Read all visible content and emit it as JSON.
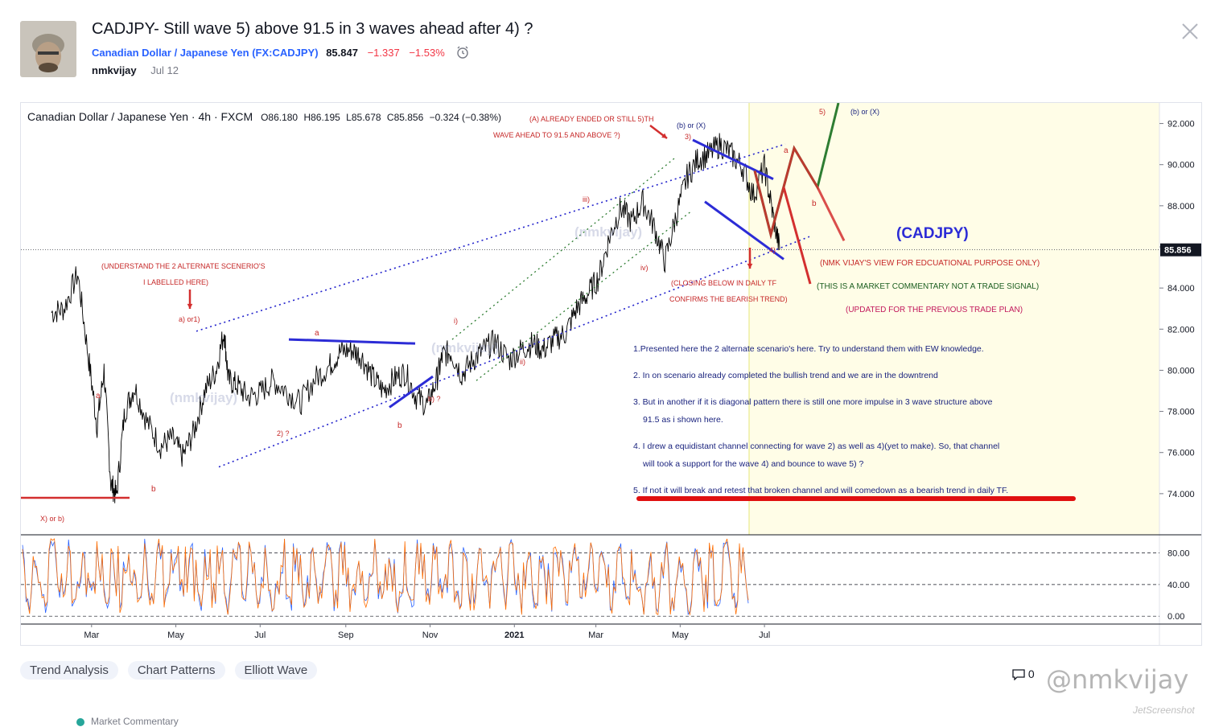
{
  "idea": {
    "title": "CADJPY- Still wave 5) above 91.5 in 3 waves ahead after 4) ?",
    "symbol_name": "Canadian Dollar / Japanese Yen",
    "symbol_ticker": "FX:CADJPY",
    "price": "85.847",
    "change": "−1.337",
    "change_pct": "−1.53%",
    "author": "nmkvijay",
    "date": "Jul 12"
  },
  "chart_header": {
    "name": "Canadian Dollar / Japanese Yen · 4h · FXCM",
    "o_label": "O",
    "o_value": "86.180",
    "h_label": "H",
    "h_value": "86.195",
    "l_label": "L",
    "l_value": "85.678",
    "c_label": "C",
    "c_value": "85.856",
    "chg": "−0.324 (−0.38%)"
  },
  "chart_data": {
    "type": "line",
    "ylim": [
      72.0,
      93.0
    ],
    "y_ticks": [
      "92.000",
      "90.000",
      "88.000",
      "86.000",
      "84.000",
      "82.000",
      "80.000",
      "78.000",
      "76.000",
      "74.000"
    ],
    "y_tick_values": [
      92,
      90,
      88,
      86,
      84,
      82,
      80,
      78,
      76,
      74
    ],
    "last_price": "85.856",
    "last_price_value": 85.856,
    "x_labels": [
      "Mar",
      "May",
      "Jul",
      "Sep",
      "Nov",
      "2021",
      "Mar",
      "May",
      "Jul"
    ],
    "x_label_dates": [
      "2020-03-01",
      "2020-05-01",
      "2020-07-01",
      "2020-09-01",
      "2020-11-01",
      "2021-01-01",
      "2021-03-01",
      "2021-05-01",
      "2021-07-01"
    ],
    "series": [
      {
        "x": [
          "2020-02-01",
          "2020-02-10",
          "2020-02-20",
          "2020-02-28",
          "2020-03-05",
          "2020-03-10",
          "2020-03-15",
          "2020-03-19",
          "2020-03-25",
          "2020-04-01",
          "2020-04-10",
          "2020-04-20",
          "2020-04-28",
          "2020-05-06",
          "2020-05-14",
          "2020-05-22",
          "2020-05-30",
          "2020-06-05",
          "2020-06-08",
          "2020-06-14",
          "2020-06-22",
          "2020-07-01",
          "2020-07-10",
          "2020-07-20",
          "2020-07-30",
          "2020-08-10",
          "2020-08-20",
          "2020-08-28",
          "2020-09-05",
          "2020-09-12",
          "2020-09-20",
          "2020-09-28",
          "2020-10-06",
          "2020-10-14",
          "2020-10-22",
          "2020-10-30",
          "2020-11-06",
          "2020-11-10",
          "2020-11-16",
          "2020-11-24",
          "2020-12-02",
          "2020-12-10",
          "2020-12-18",
          "2020-12-28",
          "2021-01-06",
          "2021-01-14",
          "2021-01-22",
          "2021-01-30",
          "2021-02-07",
          "2021-02-15",
          "2021-02-23",
          "2021-03-03",
          "2021-03-11",
          "2021-03-19",
          "2021-03-27",
          "2021-04-04",
          "2021-04-12",
          "2021-04-20",
          "2021-04-28",
          "2021-05-06",
          "2021-05-14",
          "2021-05-22",
          "2021-05-30",
          "2021-06-07",
          "2021-06-15",
          "2021-06-23",
          "2021-07-01",
          "2021-07-07",
          "2021-07-12"
        ],
        "y": [
          82.8,
          83.0,
          84.7,
          80.5,
          77.3,
          80.0,
          74.5,
          73.9,
          78.0,
          79.2,
          77.5,
          76.3,
          76.7,
          75.8,
          77.0,
          79.0,
          80.0,
          81.9,
          79.5,
          79.3,
          78.7,
          78.9,
          79.5,
          79.0,
          78.4,
          79.6,
          80.2,
          80.9,
          81.0,
          80.7,
          79.7,
          79.0,
          79.6,
          79.9,
          78.7,
          78.3,
          79.6,
          80.7,
          80.9,
          79.8,
          80.5,
          81.0,
          81.4,
          80.5,
          81.0,
          81.3,
          81.0,
          81.5,
          81.8,
          83.0,
          83.7,
          84.5,
          86.5,
          87.9,
          87.2,
          88.2,
          87.0,
          85.3,
          87.5,
          89.4,
          90.3,
          90.5,
          91.0,
          90.5,
          89.9,
          88.5,
          89.9,
          87.6,
          85.86
        ]
      }
    ],
    "oscillator": {
      "levels": [
        "80.00",
        "40.00",
        "0.00"
      ],
      "ylim": [
        -10,
        100
      ]
    },
    "annotations": {
      "top_note_line1": "(A) ALREADY ENDED OR STILL 5)TH",
      "top_note_line2": "WAVE AHEAD TO 91.5 AND ABOVE ?)",
      "scenario_line1": "(UNDERSTAND THE 2 ALTERNATE SCENERIO'S",
      "scenario_line2": "I LABELLED HERE)",
      "closing_line1": "(CLOSING BELOW IN DAILY TF",
      "closing_line2": "CONFIRMS THE BEARISH TREND)",
      "cadjpy_label": "(CADJPY)",
      "view_note": "(NMK VIJAY'S VIEW FOR EDCUATIONAL PURPOSE ONLY)",
      "commentary_note": "(THIS IS A MARKET COMMENTARY NOT A TRADE SIGNAL)",
      "updated_note": "(UPDATED FOR THE PREVIOUS TRADE PLAN)",
      "point1": "1.Presented here the 2 alternate scenario's here. Try to understand them with EW knowledge.",
      "point2": "2. In on scenario already completed the bullish trend and we are in the downtrend",
      "point3a": "3. But in another if it is diagonal pattern there is  still one more impulse in 3 wave structure above",
      "point3b": "91.5 as i shown here.",
      "point4a": "4. I drew a equidistant channel connecting for wave 2) as well as 4)(yet to make). So, that channel",
      "point4b": "will took a support for the wave 4) and bounce to wave 5) ?",
      "point5": "5. If not it will break and retest that broken channel and will comedown as a bearish trend in daily TF.",
      "watermark": "(nmkvijay)",
      "labels": {
        "xb": "X) or b)",
        "a1": "a",
        "b1": "b",
        "aor1": "a) or1)",
        "two": "2) ?",
        "a2": "a",
        "b2": "b",
        "bq": "b) ?",
        "i": "i)",
        "ii": "ii)",
        "iii": "iii)",
        "iv": "iv)",
        "bx": "(b) or (X)",
        "three": "3)",
        "four": "4)",
        "five": "5)",
        "bx2": "(b) or (X)",
        "a3": "a",
        "b3": "b"
      }
    }
  },
  "tags": [
    "Trend Analysis",
    "Chart Patterns",
    "Elliott Wave"
  ],
  "footer": {
    "comments": "0",
    "watermark": "@nmkvijay",
    "screenshot": "JetScreenshot",
    "next": "Market Commentary"
  }
}
